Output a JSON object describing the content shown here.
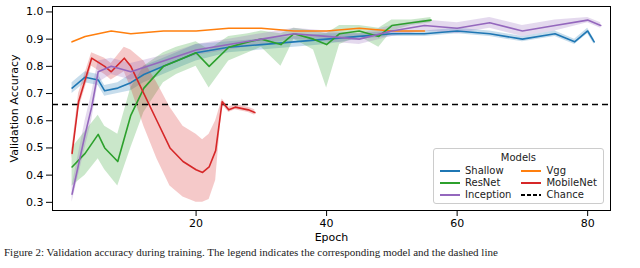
{
  "chart_data": {
    "type": "line",
    "x_label": "Epoch",
    "y_label": "Validation Accuracy",
    "caption": "Figure 2: Validation accuracy during training. The legend indicates the corresponding model and the dashed line",
    "legend_title": "Models",
    "legend": "lower right",
    "grid": false,
    "xlim": [
      -2,
      83.5
    ],
    "xticks": [
      20,
      40,
      60,
      80
    ],
    "ylim": [
      0.27,
      1.02
    ],
    "yticks": [
      0.3,
      0.4,
      0.5,
      0.6,
      0.7,
      0.8,
      0.9,
      {
        "value": 1,
        "label": "1.0"
      }
    ],
    "series": [
      {
        "name": "Shallow",
        "color": "#1f77b4",
        "line_style": "solid",
        "x": [
          1,
          3,
          5,
          6,
          8,
          10,
          12,
          15,
          18,
          20,
          25,
          30,
          35,
          40,
          45,
          50,
          55,
          60,
          65,
          70,
          75,
          78,
          80,
          81
        ],
        "values": [
          0.72,
          0.76,
          0.75,
          0.71,
          0.72,
          0.74,
          0.77,
          0.8,
          0.83,
          0.85,
          0.87,
          0.88,
          0.89,
          0.9,
          0.91,
          0.92,
          0.92,
          0.93,
          0.92,
          0.9,
          0.92,
          0.89,
          0.93,
          0.89
        ],
        "lower": [
          0.7,
          0.74,
          0.73,
          0.69,
          0.7,
          0.71,
          0.74,
          0.77,
          0.8,
          0.82,
          0.85,
          0.86,
          0.87,
          0.88,
          0.9,
          0.91,
          0.91,
          0.92,
          0.91,
          0.89,
          0.91,
          0.88,
          0.92,
          0.88
        ],
        "upper": [
          0.74,
          0.78,
          0.77,
          0.73,
          0.74,
          0.77,
          0.8,
          0.83,
          0.86,
          0.88,
          0.89,
          0.9,
          0.91,
          0.92,
          0.92,
          0.93,
          0.93,
          0.94,
          0.93,
          0.91,
          0.93,
          0.9,
          0.94,
          0.9
        ]
      },
      {
        "name": "Vgg",
        "color": "#ff7f0e",
        "line_style": "solid",
        "x": [
          1,
          3,
          5,
          7,
          10,
          15,
          20,
          25,
          30,
          35,
          40,
          45,
          50,
          55
        ],
        "values": [
          0.89,
          0.91,
          0.92,
          0.93,
          0.92,
          0.93,
          0.93,
          0.94,
          0.94,
          0.93,
          0.93,
          0.94,
          0.93,
          0.93
        ]
      },
      {
        "name": "ResNet",
        "color": "#2ca02c",
        "line_style": "solid",
        "x": [
          1,
          3,
          5,
          6,
          8,
          10,
          12,
          15,
          17,
          20,
          22,
          25,
          28,
          30,
          33,
          35,
          38,
          40,
          42,
          45,
          48,
          50,
          53,
          56
        ],
        "values": [
          0.43,
          0.48,
          0.55,
          0.5,
          0.45,
          0.62,
          0.72,
          0.8,
          0.82,
          0.85,
          0.8,
          0.87,
          0.89,
          0.9,
          0.88,
          0.92,
          0.9,
          0.88,
          0.92,
          0.93,
          0.91,
          0.95,
          0.96,
          0.97
        ],
        "lower": [
          0.36,
          0.4,
          0.46,
          0.42,
          0.36,
          0.5,
          0.63,
          0.74,
          0.77,
          0.8,
          0.72,
          0.82,
          0.85,
          0.87,
          0.8,
          0.9,
          0.86,
          0.72,
          0.88,
          0.91,
          0.87,
          0.93,
          0.95,
          0.96
        ],
        "upper": [
          0.5,
          0.56,
          0.62,
          0.58,
          0.55,
          0.72,
          0.8,
          0.85,
          0.87,
          0.89,
          0.86,
          0.91,
          0.92,
          0.93,
          0.92,
          0.94,
          0.93,
          0.92,
          0.95,
          0.95,
          0.94,
          0.97,
          0.97,
          0.98
        ]
      },
      {
        "name": "MobileNet",
        "color": "#d62728",
        "line_style": "solid",
        "x": [
          1,
          2,
          4,
          6,
          7,
          9,
          10,
          12,
          14,
          16,
          18,
          20,
          21,
          22,
          23,
          24,
          25,
          26,
          28,
          29
        ],
        "values": [
          0.48,
          0.67,
          0.83,
          0.8,
          0.78,
          0.83,
          0.8,
          0.7,
          0.6,
          0.5,
          0.45,
          0.42,
          0.41,
          0.43,
          0.49,
          0.67,
          0.64,
          0.65,
          0.64,
          0.63
        ],
        "lower": [
          0.46,
          0.64,
          0.8,
          0.77,
          0.75,
          0.78,
          0.72,
          0.58,
          0.46,
          0.36,
          0.32,
          0.3,
          0.3,
          0.31,
          0.38,
          0.66,
          0.63,
          0.64,
          0.63,
          0.62
        ],
        "upper": [
          0.5,
          0.7,
          0.85,
          0.83,
          0.81,
          0.87,
          0.86,
          0.82,
          0.74,
          0.65,
          0.58,
          0.55,
          0.53,
          0.55,
          0.6,
          0.68,
          0.65,
          0.66,
          0.65,
          0.64
        ]
      },
      {
        "name": "Inception",
        "color": "#9467bd",
        "line_style": "solid",
        "x": [
          1,
          3,
          4,
          5,
          7,
          10,
          15,
          20,
          25,
          30,
          35,
          40,
          45,
          50,
          55,
          60,
          65,
          70,
          75,
          80,
          82
        ],
        "values": [
          0.33,
          0.55,
          0.65,
          0.78,
          0.8,
          0.78,
          0.82,
          0.86,
          0.88,
          0.9,
          0.92,
          0.91,
          0.9,
          0.93,
          0.95,
          0.94,
          0.96,
          0.93,
          0.95,
          0.97,
          0.95
        ],
        "lower": [
          0.3,
          0.5,
          0.6,
          0.74,
          0.77,
          0.75,
          0.8,
          0.84,
          0.86,
          0.88,
          0.9,
          0.89,
          0.88,
          0.91,
          0.93,
          0.92,
          0.94,
          0.91,
          0.93,
          0.96,
          0.94
        ],
        "upper": [
          0.36,
          0.6,
          0.7,
          0.82,
          0.83,
          0.81,
          0.84,
          0.88,
          0.9,
          0.92,
          0.94,
          0.93,
          0.92,
          0.95,
          0.97,
          0.96,
          0.98,
          0.95,
          0.97,
          0.98,
          0.96
        ]
      }
    ],
    "reference_line": {
      "name": "Chance",
      "value": 0.66,
      "color": "#000000",
      "line_style": "dashed"
    }
  }
}
